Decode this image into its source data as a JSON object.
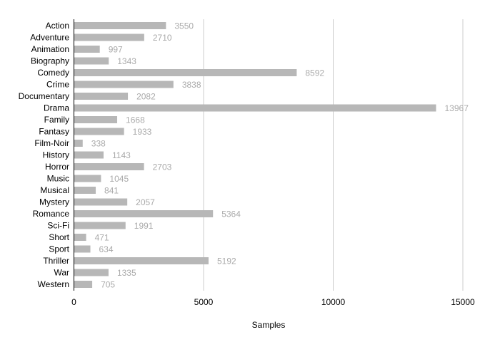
{
  "chart_data": {
    "type": "bar",
    "orientation": "horizontal",
    "categories": [
      "Action",
      "Adventure",
      "Animation",
      "Biography",
      "Comedy",
      "Crime",
      "Documentary",
      "Drama",
      "Family",
      "Fantasy",
      "Film-Noir",
      "History",
      "Horror",
      "Music",
      "Musical",
      "Mystery",
      "Romance",
      "Sci-Fi",
      "Short",
      "Sport",
      "Thriller",
      "War",
      "Western"
    ],
    "values": [
      3550,
      2710,
      997,
      1343,
      8592,
      3838,
      2082,
      13967,
      1668,
      1933,
      338,
      1143,
      2703,
      1045,
      841,
      2057,
      5364,
      1991,
      471,
      634,
      5192,
      1335,
      705
    ],
    "xlabel": "Samples",
    "ylabel": "",
    "xlim": [
      0,
      15000
    ],
    "xticks": [
      0,
      5000,
      10000,
      15000
    ],
    "grid": true,
    "data_labels": true,
    "colors": {
      "bar": "#b7b7b7",
      "grid": "#cccccc",
      "axis": "#000000",
      "data_label": "#aaaaaa"
    }
  }
}
